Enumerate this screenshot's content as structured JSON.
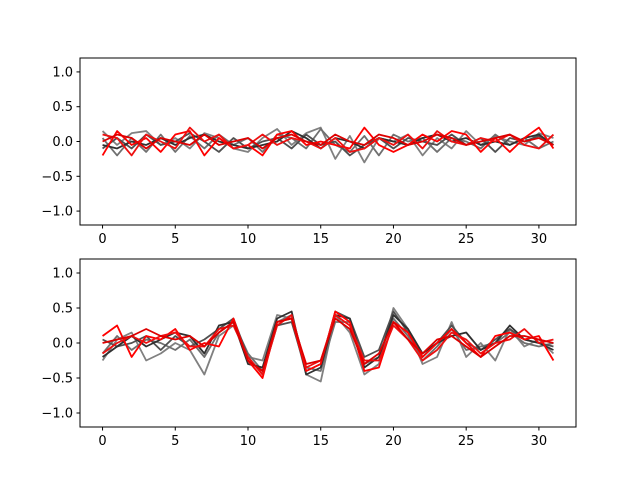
{
  "chart_data": [
    {
      "type": "line",
      "title": "",
      "xlabel": "",
      "ylabel": "",
      "xlim": [
        -1.55,
        32.55
      ],
      "ylim": [
        -1.2,
        1.2
      ],
      "xticks": [
        0,
        5,
        10,
        15,
        20,
        25,
        30
      ],
      "yticks": [
        -1.0,
        -0.5,
        0.0,
        0.5,
        1.0
      ],
      "xtick_labels": [
        "0",
        "5",
        "10",
        "15",
        "20",
        "25",
        "30"
      ],
      "ytick_labels": [
        "−1.0",
        "−0.5",
        "0.0",
        "0.5",
        "1.0"
      ],
      "grid": false,
      "legend": "none",
      "x": [
        0,
        1,
        2,
        3,
        4,
        5,
        6,
        7,
        8,
        9,
        10,
        11,
        12,
        13,
        14,
        15,
        16,
        17,
        18,
        19,
        20,
        21,
        22,
        23,
        24,
        25,
        26,
        27,
        28,
        29,
        30,
        31
      ],
      "series": [
        {
          "color": "#808080",
          "values": [
            0.15,
            -0.05,
            0.12,
            0.15,
            -0.05,
            0.05,
            -0.1,
            0.12,
            0.05,
            -0.1,
            -0.15,
            0.05,
            0.18,
            -0.05,
            0.12,
            0.2,
            -0.25,
            0.08,
            -0.3,
            0.05,
            0.0,
            0.1,
            -0.2,
            0.05,
            -0.1,
            0.15,
            -0.05,
            0.08,
            0.0,
            -0.05,
            0.12,
            0.05
          ]
        },
        {
          "color": "#707070",
          "values": [
            0.05,
            -0.2,
            0.05,
            -0.15,
            0.1,
            -0.15,
            0.08,
            -0.1,
            0.1,
            -0.05,
            0.05,
            -0.15,
            0.1,
            0.05,
            -0.1,
            0.18,
            -0.05,
            -0.15,
            0.08,
            -0.2,
            0.1,
            0.0,
            0.05,
            -0.15,
            0.05,
            0.0,
            -0.1,
            0.1,
            -0.05,
            0.05,
            -0.1,
            0.0
          ]
        },
        {
          "color": "#505050",
          "values": [
            -0.1,
            0.05,
            -0.1,
            0.1,
            -0.05,
            0.0,
            0.12,
            0.0,
            -0.15,
            0.05,
            -0.1,
            0.0,
            0.05,
            -0.1,
            0.1,
            -0.05,
            0.0,
            -0.2,
            -0.05,
            0.05,
            -0.1,
            0.05,
            0.0,
            -0.05,
            0.1,
            -0.05,
            0.05,
            -0.15,
            0.05,
            0.0,
            0.08,
            -0.05
          ]
        },
        {
          "color": "#303030",
          "values": [
            -0.05,
            -0.1,
            0.0,
            -0.05,
            0.05,
            -0.05,
            0.05,
            0.1,
            0.0,
            -0.05,
            -0.1,
            -0.05,
            0.0,
            0.15,
            0.05,
            -0.1,
            0.05,
            0.0,
            -0.1,
            0.05,
            0.0,
            -0.05,
            0.05,
            0.1,
            0.0,
            0.05,
            -0.05,
            0.0,
            -0.05,
            0.05,
            0.1,
            -0.05
          ]
        },
        {
          "color": "#ff0000",
          "values": [
            -0.2,
            0.15,
            -0.05,
            0.05,
            -0.15,
            0.1,
            0.15,
            -0.2,
            0.05,
            -0.1,
            -0.05,
            -0.2,
            0.1,
            0.15,
            -0.05,
            0.0,
            -0.05,
            -0.1,
            0.2,
            -0.05,
            -0.15,
            -0.05,
            0.1,
            0.0,
            0.15,
            0.1,
            -0.15,
            0.05,
            -0.15,
            0.05,
            0.2,
            -0.1
          ]
        },
        {
          "color": "#ee1010",
          "values": [
            0.1,
            0.05,
            -0.2,
            0.1,
            0.0,
            -0.1,
            0.2,
            0.0,
            0.1,
            -0.1,
            -0.05,
            0.1,
            -0.05,
            0.05,
            0.0,
            -0.1,
            0.05,
            -0.15,
            -0.1,
            0.05,
            -0.05,
            0.1,
            -0.1,
            0.15,
            0.0,
            -0.05,
            0.05,
            0.0,
            0.1,
            -0.05,
            -0.1,
            0.1
          ]
        },
        {
          "color": "#dd0000",
          "values": [
            0.0,
            0.1,
            0.05,
            -0.1,
            0.05,
            0.0,
            -0.05,
            0.1,
            -0.05,
            0.0,
            0.05,
            -0.1,
            0.05,
            0.1,
            0.0,
            -0.05,
            0.1,
            0.0,
            -0.05,
            0.1,
            0.05,
            -0.05,
            0.0,
            0.1,
            0.05,
            -0.05,
            0.0,
            0.05,
            0.1,
            0.0,
            0.05,
            -0.05
          ]
        }
      ]
    },
    {
      "type": "line",
      "title": "",
      "xlabel": "",
      "ylabel": "",
      "xlim": [
        -1.55,
        32.55
      ],
      "ylim": [
        -1.2,
        1.2
      ],
      "xticks": [
        0,
        5,
        10,
        15,
        20,
        25,
        30
      ],
      "yticks": [
        -1.0,
        -0.5,
        0.0,
        0.5,
        1.0
      ],
      "xtick_labels": [
        "0",
        "5",
        "10",
        "15",
        "20",
        "25",
        "30"
      ],
      "ytick_labels": [
        "−1.0",
        "−0.5",
        "0.0",
        "0.5",
        "1.0"
      ],
      "grid": false,
      "legend": "none",
      "x": [
        0,
        1,
        2,
        3,
        4,
        5,
        6,
        7,
        8,
        9,
        10,
        11,
        12,
        13,
        14,
        15,
        16,
        17,
        18,
        19,
        20,
        21,
        22,
        23,
        24,
        25,
        26,
        27,
        28,
        29,
        30,
        31
      ],
      "series": [
        {
          "color": "#808080",
          "values": [
            -0.25,
            0.05,
            0.15,
            -0.25,
            -0.15,
            0.0,
            -0.1,
            -0.45,
            0.1,
            0.25,
            -0.2,
            -0.25,
            0.4,
            0.35,
            -0.45,
            -0.55,
            0.4,
            0.15,
            -0.45,
            -0.3,
            0.5,
            0.2,
            -0.3,
            -0.2,
            0.3,
            -0.2,
            0.0,
            -0.25,
            0.2,
            -0.05,
            0.05,
            -0.15
          ]
        },
        {
          "color": "#707070",
          "values": [
            -0.15,
            0.1,
            -0.1,
            0.05,
            0.0,
            -0.1,
            0.05,
            -0.2,
            0.15,
            0.3,
            -0.15,
            -0.4,
            0.3,
            0.4,
            -0.35,
            -0.4,
            0.3,
            0.3,
            -0.3,
            -0.2,
            0.35,
            0.1,
            -0.25,
            -0.05,
            0.2,
            -0.1,
            -0.05,
            0.0,
            0.15,
            0.0,
            -0.05,
            0.0
          ]
        },
        {
          "color": "#505050",
          "values": [
            0.05,
            -0.05,
            0.0,
            0.1,
            -0.1,
            0.1,
            -0.05,
            0.05,
            0.2,
            0.35,
            -0.2,
            -0.45,
            0.25,
            0.3,
            -0.4,
            -0.3,
            0.45,
            0.35,
            -0.2,
            -0.1,
            0.45,
            0.15,
            -0.2,
            0.0,
            0.25,
            0.0,
            -0.1,
            0.05,
            0.2,
            0.05,
            0.0,
            -0.05
          ]
        },
        {
          "color": "#303030",
          "values": [
            -0.2,
            -0.05,
            0.1,
            -0.05,
            0.05,
            0.15,
            0.1,
            -0.15,
            0.25,
            0.3,
            -0.3,
            -0.35,
            0.35,
            0.45,
            -0.45,
            -0.35,
            0.4,
            0.35,
            -0.35,
            -0.2,
            0.4,
            0.2,
            -0.15,
            0.0,
            0.1,
            0.15,
            -0.1,
            0.0,
            0.25,
            0.05,
            0.0,
            -0.1
          ]
        },
        {
          "color": "#ff0000",
          "values": [
            0.1,
            0.25,
            -0.2,
            0.1,
            0.05,
            0.2,
            -0.1,
            0.0,
            -0.05,
            0.35,
            -0.25,
            -0.5,
            0.3,
            0.35,
            -0.4,
            -0.3,
            0.45,
            0.3,
            -0.4,
            -0.35,
            0.3,
            0.15,
            -0.2,
            0.0,
            0.2,
            0.0,
            -0.2,
            0.1,
            0.15,
            0.05,
            0.1,
            -0.25
          ]
        },
        {
          "color": "#ee1010",
          "values": [
            -0.15,
            0.0,
            0.1,
            0.0,
            0.1,
            0.15,
            -0.05,
            -0.05,
            0.2,
            0.25,
            -0.2,
            -0.45,
            0.25,
            0.4,
            -0.35,
            -0.25,
            0.4,
            0.25,
            -0.25,
            -0.25,
            0.25,
            0.05,
            -0.25,
            -0.1,
            0.15,
            0.05,
            -0.15,
            0.0,
            0.05,
            0.2,
            0.0,
            0.05
          ]
        },
        {
          "color": "#dd0000",
          "values": [
            0.0,
            0.05,
            0.1,
            0.2,
            0.1,
            0.05,
            0.1,
            -0.05,
            0.15,
            0.3,
            -0.25,
            -0.4,
            0.3,
            0.35,
            -0.3,
            -0.25,
            0.35,
            0.2,
            -0.3,
            -0.15,
            0.3,
            0.05,
            -0.15,
            0.05,
            0.1,
            -0.05,
            -0.2,
            -0.05,
            0.1,
            0.1,
            0.05,
            0.0
          ]
        }
      ]
    }
  ]
}
